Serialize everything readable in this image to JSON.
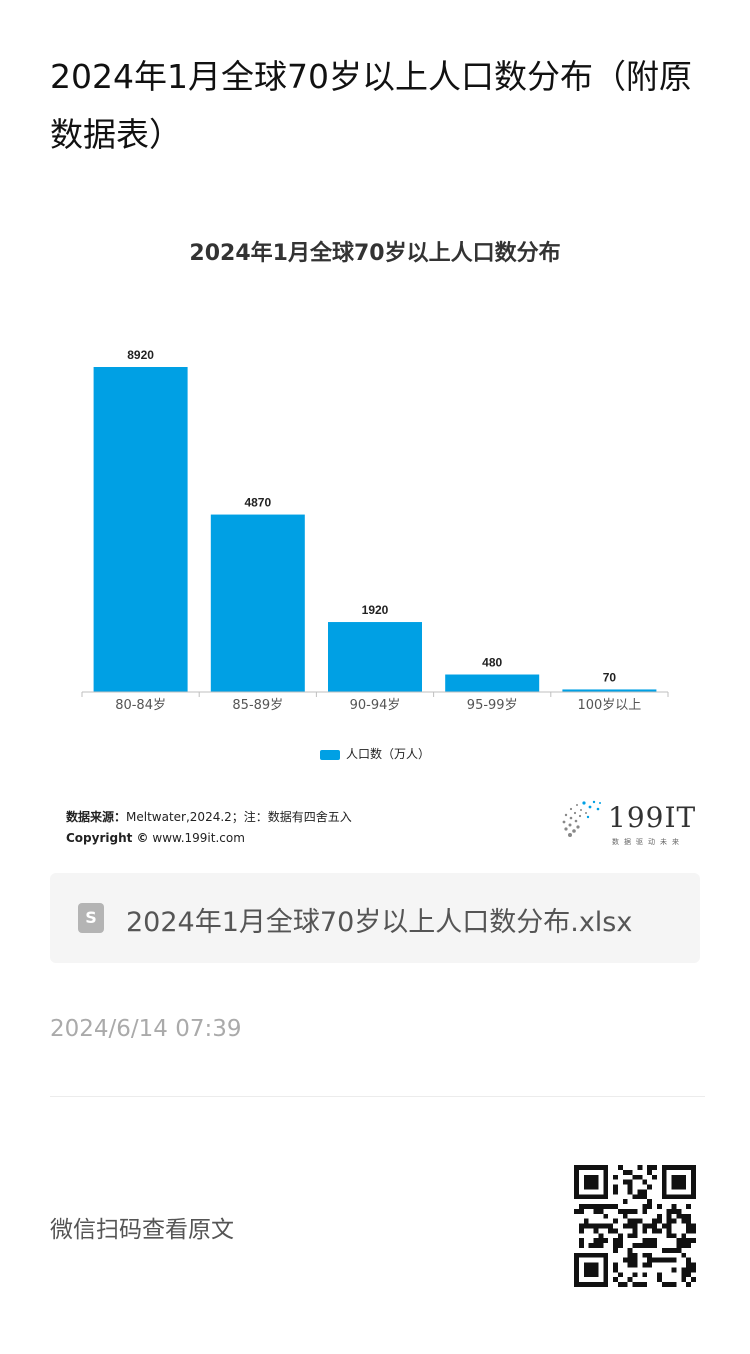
{
  "article": {
    "title": "2024年1月全球70岁以上人口数分布（附原数据表）",
    "date": "2024/6/14 07:39",
    "file_name": "2024年1月全球70岁以上人口数分布.xlsx",
    "file_icon": "S",
    "qr_label": "微信扫码查看原文"
  },
  "source": {
    "label": "数据来源：",
    "text": "Meltwater,2024.2；注：数据有四舍五入",
    "copyright_label": "Copyright ©",
    "copyright_text": "www.199it.com"
  },
  "logo": {
    "text": "199IT",
    "tagline": "数据驱动未来"
  },
  "chart_data": {
    "type": "bar",
    "title": "2024年1月全球70岁以上人口数分布",
    "categories": [
      "80-84岁",
      "85-89岁",
      "90-94岁",
      "95-99岁",
      "100岁以上"
    ],
    "series": [
      {
        "name": "人口数（万人）",
        "values": [
          8920,
          4870,
          1920,
          480,
          70
        ],
        "color": "#00a0e4"
      }
    ],
    "ylim": [
      0,
      8920
    ],
    "grid": false,
    "legend": "bottom",
    "data_labels": true
  },
  "colors": {
    "bar": "#00a0e4",
    "axis": "#bfbfbf",
    "text": "#333333"
  }
}
